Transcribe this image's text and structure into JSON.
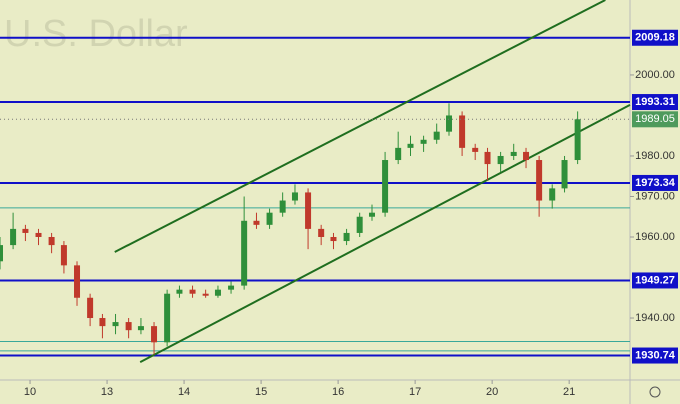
{
  "chart_data": {
    "type": "candlestick",
    "watermark": "U.S. Dollar",
    "x": [
      -0.39,
      -0.22,
      -0.06,
      0.11,
      0.28,
      0.44,
      0.61,
      0.78,
      0.94,
      1.11,
      1.28,
      1.44,
      1.61,
      1.78,
      1.94,
      2.11,
      2.28,
      2.44,
      2.61,
      2.78,
      2.94,
      3.11,
      3.28,
      3.44,
      3.61,
      3.78,
      3.94,
      4.11,
      4.28,
      4.44,
      4.61,
      4.78,
      4.94,
      5.11,
      5.28,
      5.44,
      5.61,
      5.78,
      5.94,
      6.11,
      6.28,
      6.44,
      6.61,
      6.78,
      6.94,
      7.11
    ],
    "open": [
      1954,
      1958,
      1962,
      1961,
      1960,
      1958,
      1953,
      1945,
      1940,
      1938,
      1939,
      1937,
      1938,
      1934,
      1946,
      1947,
      1946,
      1945.5,
      1947,
      1948,
      1964,
      1963,
      1966,
      1969,
      1971,
      1962,
      1960,
      1959,
      1961,
      1965,
      1966,
      1979,
      1982,
      1983,
      1984,
      1986,
      1990,
      1982,
      1981,
      1978,
      1980,
      1981,
      1979,
      1969,
      1972,
      1979
    ],
    "high": [
      1960,
      1966,
      1963,
      1962,
      1961,
      1959,
      1954,
      1946,
      1941,
      1941,
      1940,
      1940,
      1939,
      1947,
      1948,
      1948,
      1947,
      1948,
      1949,
      1970,
      1966,
      1967,
      1971,
      1973,
      1972,
      1963,
      1961,
      1962,
      1966,
      1968,
      1981,
      1986,
      1985,
      1985,
      1988,
      1993,
      1991,
      1983,
      1982,
      1981,
      1983,
      1982,
      1980,
      1973,
      1980,
      1991
    ],
    "low": [
      1952,
      1957,
      1959,
      1958,
      1956,
      1951,
      1943,
      1938,
      1935,
      1936,
      1935,
      1936,
      1931,
      1933,
      1945,
      1945,
      1945,
      1945,
      1946,
      1947,
      1962,
      1962,
      1965,
      1968,
      1957,
      1958,
      1957,
      1958,
      1960,
      1964,
      1965,
      1978,
      1980,
      1981,
      1983,
      1985,
      1980,
      1979,
      1974,
      1976,
      1979,
      1977,
      1965,
      1967,
      1971,
      1978
    ],
    "close": [
      1958,
      1962,
      1961,
      1960,
      1958,
      1953,
      1945,
      1940,
      1938,
      1939,
      1937,
      1938,
      1934,
      1946,
      1947,
      1946,
      1945.5,
      1947,
      1948,
      1964,
      1963,
      1966,
      1969,
      1971,
      1962,
      1960,
      1959,
      1961,
      1965,
      1966,
      1979,
      1982,
      1983,
      1984,
      1986,
      1990,
      1982,
      1981,
      1978,
      1980,
      1981,
      1979,
      1969,
      1972,
      1979,
      1989.05
    ],
    "up_color": "#2f8f3a",
    "down_color": "#c0392b",
    "xlim": [
      -0.39,
      7.79
    ],
    "ylim": [
      1924.7,
      2018.5
    ],
    "xticks": [
      {
        "value": 0,
        "label": "10"
      },
      {
        "value": 1,
        "label": "13"
      },
      {
        "value": 2,
        "label": "14"
      },
      {
        "value": 3,
        "label": "15"
      },
      {
        "value": 4,
        "label": "16"
      },
      {
        "value": 5,
        "label": "17"
      },
      {
        "value": 6,
        "label": "20"
      },
      {
        "value": 7,
        "label": "21"
      }
    ],
    "yticks": [
      {
        "value": 2000,
        "label": "2000.00"
      },
      {
        "value": 1980,
        "label": "1980.00"
      },
      {
        "value": 1970,
        "label": "1970.00"
      },
      {
        "value": 1960,
        "label": "1960.00"
      },
      {
        "value": 1940,
        "label": "1940.00"
      }
    ],
    "levels": [
      2009.18,
      1993.31,
      1973.34,
      1949.27,
      1930.74
    ],
    "level_color": "#1010c8",
    "thin_levels": [
      1967.2,
      1934.2,
      1931.9
    ],
    "thin_color": "#3aa89a",
    "last_price": 1989.05,
    "last_color": "#4e9a5c",
    "channels": [
      {
        "x": [
          1.1,
          7.47
        ],
        "y": [
          1956.3,
          2018.5
        ]
      },
      {
        "x": [
          1.43,
          7.79
        ],
        "y": [
          1929.1,
          1992.6
        ]
      }
    ],
    "channel_color": "#1f6e1f"
  }
}
